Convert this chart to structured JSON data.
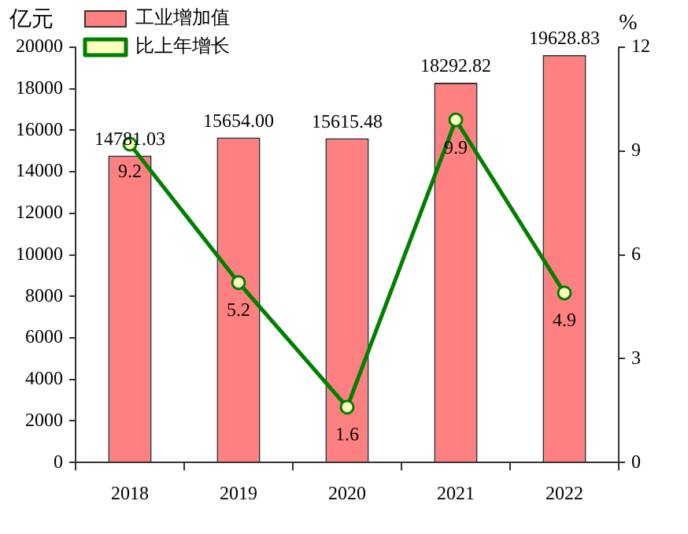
{
  "chart_data": {
    "type": "bar",
    "categories": [
      "2018",
      "2019",
      "2020",
      "2021",
      "2022"
    ],
    "ylabel": "亿元",
    "y2label": "%",
    "series": [
      {
        "name": "工业增加值",
        "color": "#ff8080",
        "values": [
          14781.03,
          15654.0,
          15615.48,
          18292.82,
          19628.83
        ],
        "value_labels": [
          "14781.03",
          "15654.00",
          "15615.48",
          "18292.82",
          "19628.83"
        ]
      },
      {
        "name": "比上年增长",
        "type": "line",
        "axis": "y2",
        "color": "#008000",
        "marker": "circle",
        "values": [
          9.2,
          5.2,
          1.6,
          9.9,
          4.9
        ],
        "value_labels": [
          "9.2",
          "5.2",
          "1.6",
          "9.9",
          "4.9"
        ]
      }
    ],
    "ylim": [
      0,
      20000
    ],
    "yticks": [
      0,
      2000,
      4000,
      6000,
      8000,
      10000,
      12000,
      14000,
      16000,
      18000,
      20000
    ],
    "y2lim": [
      0,
      12
    ],
    "y2ticks": [
      0,
      3,
      6,
      9,
      12
    ],
    "grid": false,
    "legend": "top left"
  }
}
